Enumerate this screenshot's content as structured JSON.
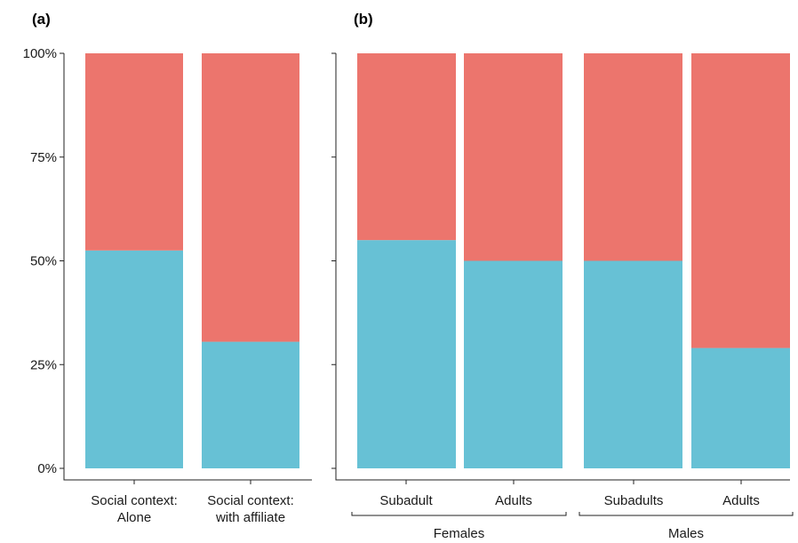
{
  "colors": {
    "lower": "#67C1D5",
    "upper": "#EC756D"
  },
  "chart_data": [
    {
      "type": "bar",
      "stacked": true,
      "panel_label": "(a)",
      "ylim": [
        0,
        100
      ],
      "yticks": [
        "0%",
        "25%",
        "50%",
        "75%",
        "100%"
      ],
      "yticks_values": [
        0,
        25,
        50,
        75,
        100
      ],
      "categories": [
        {
          "line1": "Social context:",
          "line2": "Alone"
        },
        {
          "line1": "Social context:",
          "line2": "with affiliate"
        }
      ],
      "series": [
        {
          "values": [
            52.5,
            30.5
          ]
        },
        {
          "values": [
            47.5,
            69.5
          ]
        }
      ]
    },
    {
      "type": "bar",
      "stacked": true,
      "panel_label": "(b)",
      "ylim": [
        0,
        100
      ],
      "categories": [
        "Subadult",
        "Adults",
        "Subadults",
        "Adults"
      ],
      "groups": [
        {
          "label": "Females"
        },
        {
          "label": "Males"
        }
      ],
      "series": [
        {
          "values": [
            55,
            50,
            50,
            29
          ]
        },
        {
          "values": [
            45,
            50,
            50,
            71
          ]
        }
      ]
    }
  ]
}
